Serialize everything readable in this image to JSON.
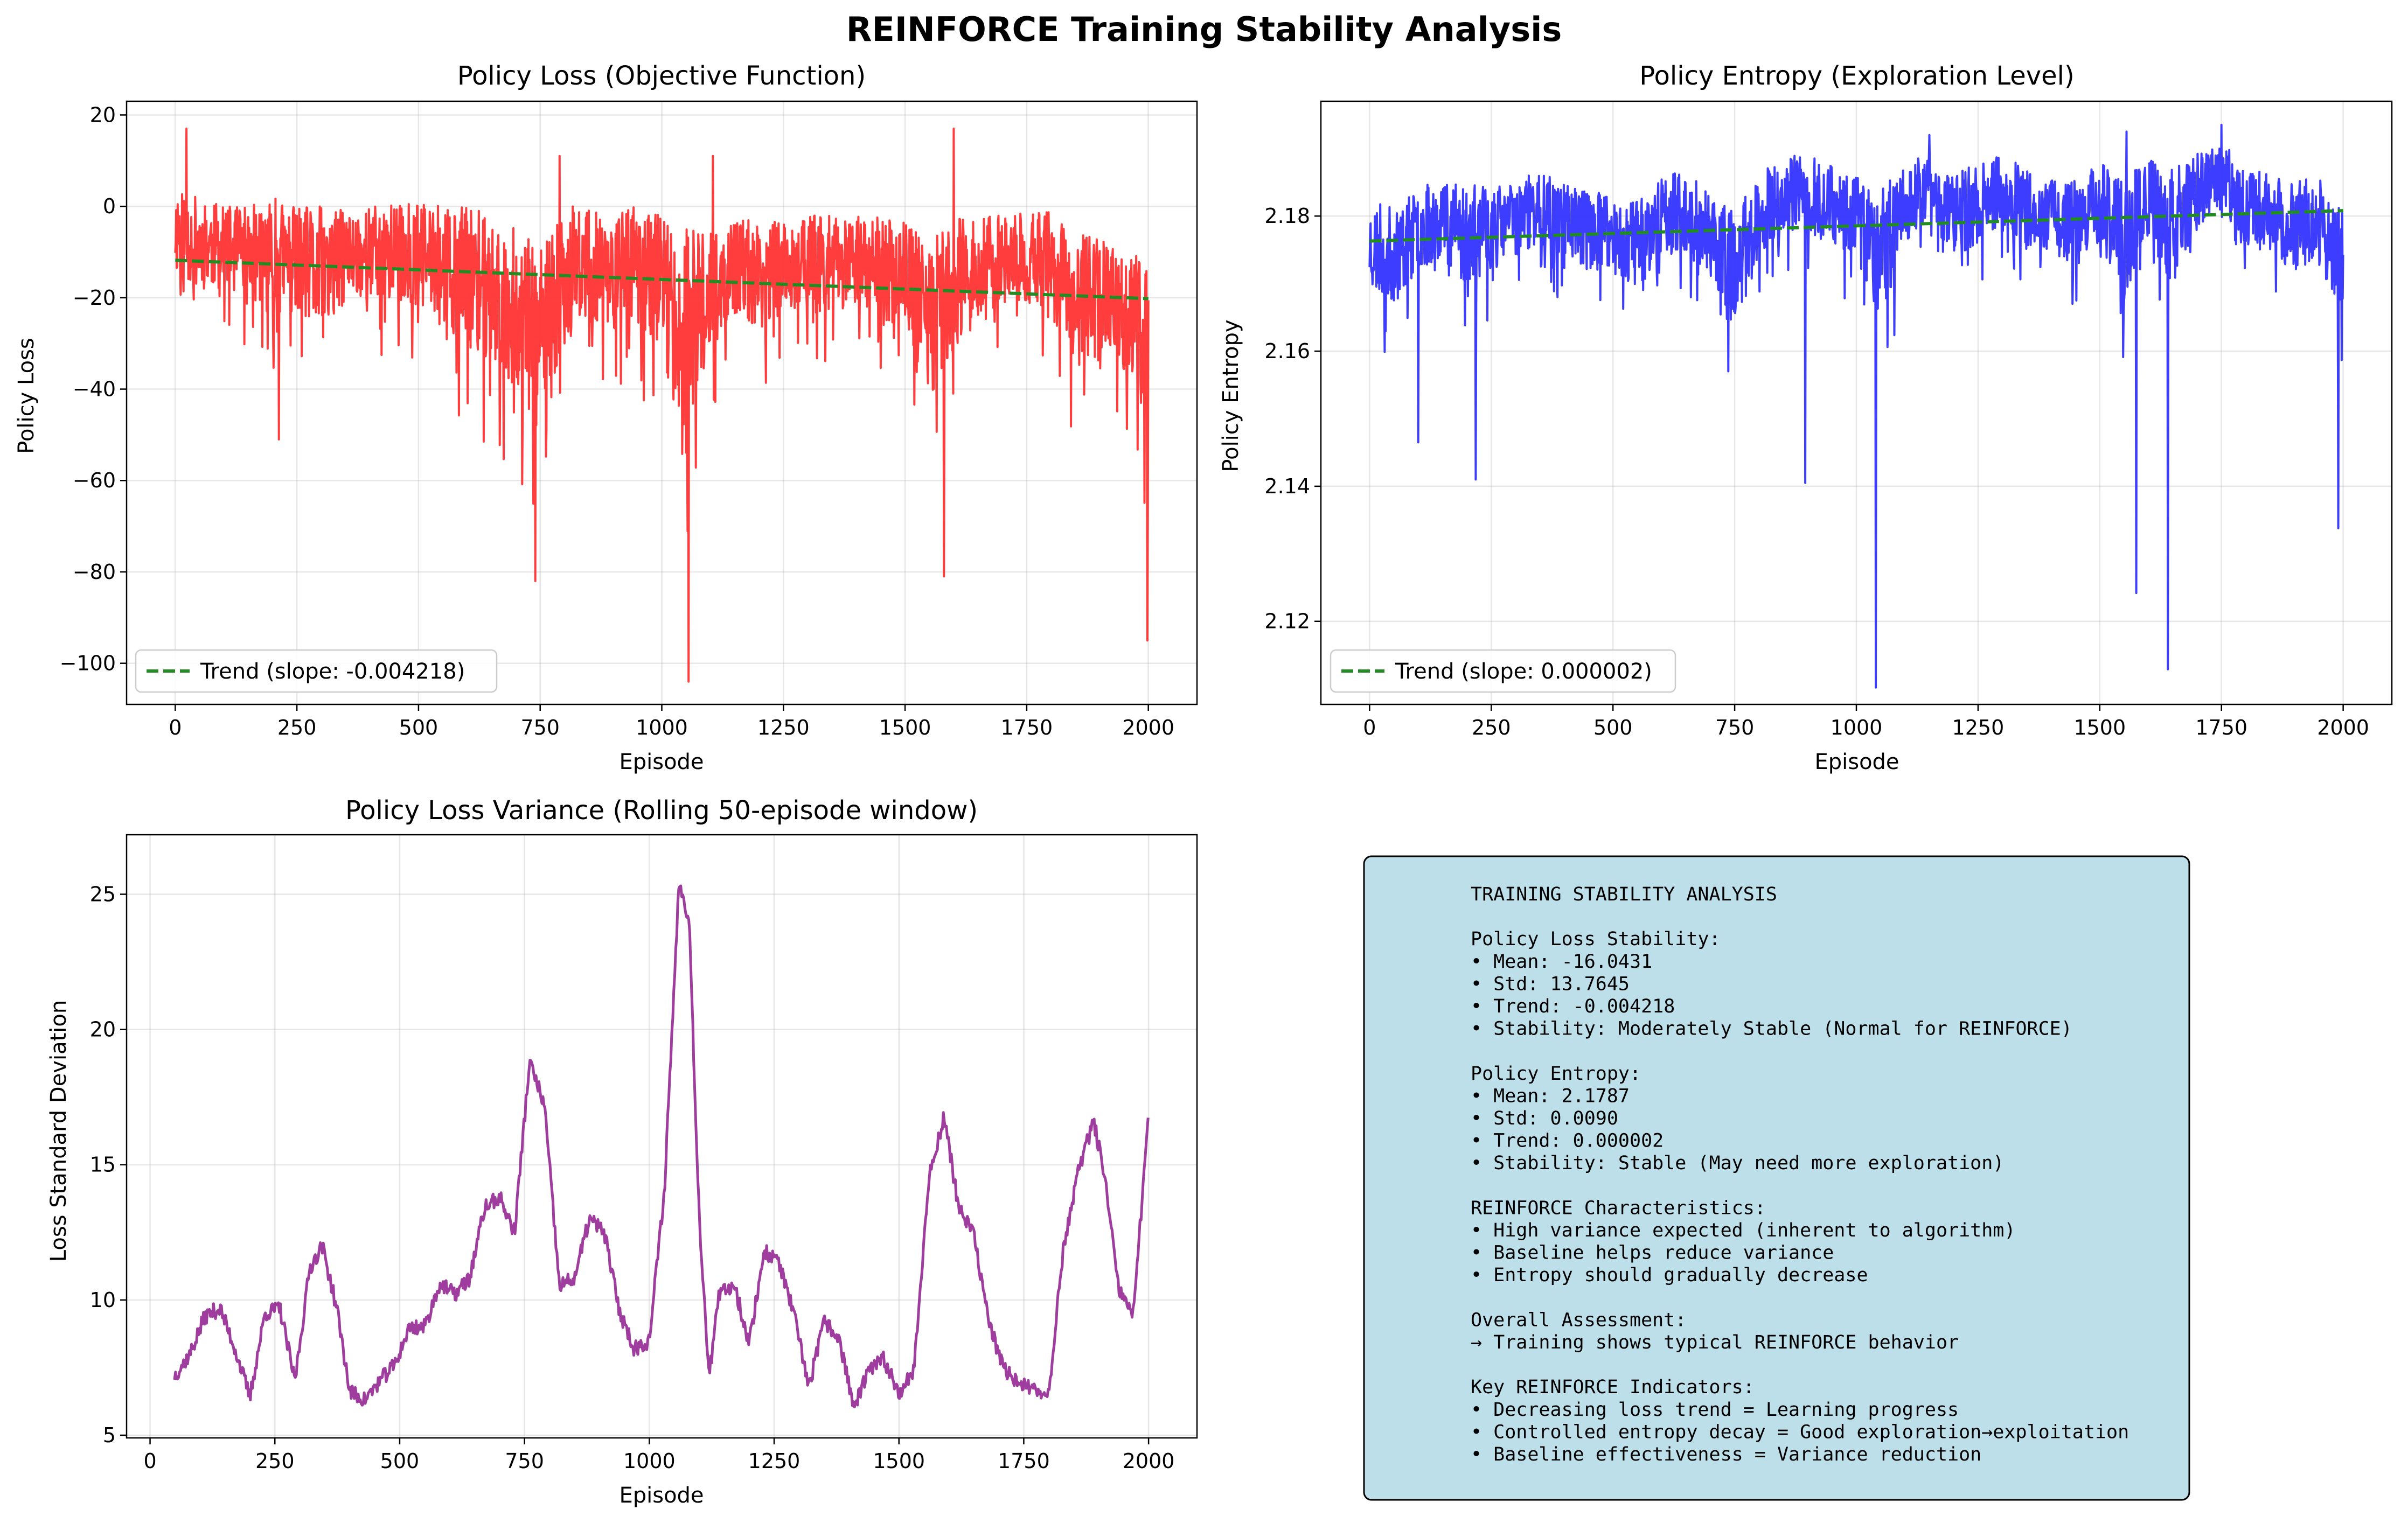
{
  "figure": {
    "title": "REINFORCE Training Stability Analysis"
  },
  "colors": {
    "loss": "#ff3333",
    "entropy": "#3333ff",
    "variance": "#993399",
    "trend": "#228b22",
    "stats_box_fill": "#bcdfea"
  },
  "chart_data": [
    {
      "type": "line",
      "title": "Policy Loss (Objective Function)",
      "xlabel": "Episode",
      "ylabel": "Policy Loss",
      "xlim": [
        -100,
        2100
      ],
      "ylim": [
        -109,
        23
      ],
      "xticks": [
        0,
        250,
        500,
        750,
        1000,
        1250,
        1500,
        1750,
        2000
      ],
      "yticks": [
        20,
        0,
        -20,
        -40,
        -60,
        -80,
        -100
      ],
      "grid": true,
      "legend_placement": "lower-left",
      "series": [
        {
          "kind": "noisy-line",
          "color": "#ff3333",
          "x": [
            0,
            50,
            100,
            150,
            200,
            250,
            300,
            350,
            400,
            450,
            500,
            550,
            600,
            650,
            700,
            750,
            800,
            850,
            900,
            950,
            1000,
            1050,
            1100,
            1150,
            1200,
            1250,
            1300,
            1350,
            1400,
            1450,
            1500,
            1550,
            1600,
            1650,
            1700,
            1750,
            1800,
            1850,
            1900,
            1950,
            2000
          ],
          "y": [
            -5,
            -8,
            -9,
            -10,
            -11,
            -12,
            -15,
            -11,
            -10,
            -10,
            -11,
            -13,
            -15,
            -18,
            -22,
            -30,
            -15,
            -13,
            -14,
            -13,
            -16,
            -30,
            -18,
            -14,
            -15,
            -13,
            -12,
            -13,
            -12,
            -14,
            -15,
            -25,
            -17,
            -14,
            -12,
            -11,
            -13,
            -20,
            -22,
            -23,
            -28
          ],
          "band": [
            10,
            10,
            9,
            10,
            13,
            12,
            15,
            10,
            10,
            11,
            12,
            13,
            15,
            16,
            18,
            20,
            15,
            13,
            14,
            13,
            16,
            25,
            12,
            11,
            12,
            11,
            10,
            11,
            10,
            12,
            12,
            17,
            14,
            12,
            10,
            10,
            12,
            14,
            15,
            13,
            18
          ]
        },
        {
          "name": "Trend (slope: -0.004218)",
          "kind": "trend",
          "color": "#228b22",
          "x": [
            0,
            2000
          ],
          "y": [
            -11.8,
            -20.2
          ]
        }
      ],
      "annotations_minima": [
        {
          "x": 213,
          "y": -51
        },
        {
          "x": 740,
          "y": -82
        },
        {
          "x": 1055,
          "y": -104
        },
        {
          "x": 1580,
          "y": -81
        },
        {
          "x": 1998,
          "y": -95
        }
      ],
      "annotations_maxima": [
        {
          "x": 23,
          "y": 17
        },
        {
          "x": 1600,
          "y": 17
        },
        {
          "x": 790,
          "y": 11
        },
        {
          "x": 1105,
          "y": 11
        }
      ]
    },
    {
      "type": "line",
      "title": "Policy Entropy (Exploration Level)",
      "xlabel": "Episode",
      "ylabel": "Policy Entropy",
      "xlim": [
        -100,
        2100
      ],
      "ylim": [
        2.1077,
        2.197
      ],
      "xticks": [
        0,
        250,
        500,
        750,
        1000,
        1250,
        1500,
        1750,
        2000
      ],
      "yticks": [
        2.18,
        2.16,
        2.14,
        2.12
      ],
      "grid": true,
      "legend_placement": "lower-left",
      "series": [
        {
          "kind": "noisy-line",
          "color": "#3333ff",
          "x": [
            0,
            50,
            100,
            150,
            200,
            250,
            300,
            350,
            400,
            450,
            500,
            550,
            600,
            650,
            700,
            750,
            800,
            850,
            900,
            950,
            1000,
            1050,
            1100,
            1150,
            1200,
            1250,
            1300,
            1350,
            1400,
            1450,
            1500,
            1550,
            1600,
            1650,
            1700,
            1750,
            1800,
            1850,
            1900,
            1950,
            2000
          ],
          "y": [
            2.176,
            2.174,
            2.178,
            2.18,
            2.177,
            2.178,
            2.18,
            2.181,
            2.18,
            2.178,
            2.177,
            2.176,
            2.18,
            2.181,
            2.177,
            2.172,
            2.18,
            2.183,
            2.183,
            2.182,
            2.18,
            2.174,
            2.182,
            2.184,
            2.18,
            2.182,
            2.184,
            2.181,
            2.18,
            2.18,
            2.182,
            2.176,
            2.183,
            2.178,
            2.184,
            2.186,
            2.182,
            2.18,
            2.178,
            2.18,
            2.172
          ],
          "band": [
            0.007,
            0.007,
            0.006,
            0.006,
            0.008,
            0.006,
            0.006,
            0.005,
            0.006,
            0.006,
            0.006,
            0.007,
            0.006,
            0.006,
            0.006,
            0.009,
            0.006,
            0.006,
            0.006,
            0.006,
            0.006,
            0.01,
            0.006,
            0.005,
            0.006,
            0.006,
            0.005,
            0.006,
            0.006,
            0.006,
            0.006,
            0.009,
            0.006,
            0.009,
            0.006,
            0.005,
            0.006,
            0.006,
            0.007,
            0.006,
            0.01
          ]
        },
        {
          "name": "Trend (slope: 0.000002)",
          "kind": "trend",
          "color": "#228b22",
          "x": [
            0,
            2000
          ],
          "y": [
            2.1763,
            2.1808
          ]
        }
      ],
      "annotations_minima": [
        {
          "x": 100,
          "y": 2.1465
        },
        {
          "x": 218,
          "y": 2.141
        },
        {
          "x": 895,
          "y": 2.1405
        },
        {
          "x": 1040,
          "y": 2.1102
        },
        {
          "x": 1575,
          "y": 2.1242
        },
        {
          "x": 1640,
          "y": 2.1129
        },
        {
          "x": 1990,
          "y": 2.1338
        }
      ],
      "annotations_maxima": [
        {
          "x": 1750,
          "y": 2.1935
        },
        {
          "x": 1150,
          "y": 2.192
        },
        {
          "x": 1555,
          "y": 2.1925
        }
      ]
    },
    {
      "type": "line",
      "title": "Policy Loss Variance (Rolling 50-episode window)",
      "xlabel": "Episode",
      "ylabel": "Loss Standard Deviation",
      "xlim": [
        -47,
        2097
      ],
      "ylim": [
        4.9,
        27.2
      ],
      "xticks": [
        0,
        250,
        500,
        750,
        1000,
        1250,
        1500,
        1750,
        2000
      ],
      "yticks": [
        5,
        10,
        15,
        20,
        25
      ],
      "grid": true,
      "series": [
        {
          "kind": "wiggly-line",
          "color": "#993399",
          "x": [
            49,
            80,
            110,
            140,
            170,
            200,
            230,
            260,
            290,
            320,
            345,
            375,
            400,
            430,
            460,
            490,
            520,
            550,
            580,
            610,
            640,
            670,
            700,
            730,
            760,
            790,
            820,
            850,
            880,
            910,
            940,
            970,
            1000,
            1030,
            1060,
            1080,
            1100,
            1120,
            1140,
            1170,
            1200,
            1230,
            1260,
            1290,
            1320,
            1350,
            1380,
            1410,
            1440,
            1470,
            1500,
            1530,
            1560,
            1590,
            1620,
            1650,
            1680,
            1710,
            1740,
            1770,
            1800,
            1830,
            1860,
            1890,
            1910,
            1940,
            1970,
            1999
          ],
          "y": [
            7.2,
            8.0,
            9.4,
            9.7,
            8.2,
            6.4,
            9.5,
            9.7,
            7.0,
            11.2,
            12.0,
            9.6,
            6.6,
            6.3,
            7.0,
            7.6,
            9.0,
            9.0,
            10.6,
            10.2,
            10.8,
            13.4,
            13.8,
            12.5,
            18.8,
            17.2,
            10.5,
            10.8,
            13.0,
            12.5,
            9.6,
            8.2,
            8.5,
            14.0,
            25.6,
            24.0,
            13.0,
            7.2,
            10.2,
            10.6,
            8.4,
            11.8,
            11.4,
            9.4,
            6.8,
            9.2,
            8.6,
            6.0,
            7.4,
            7.8,
            6.6,
            7.4,
            14.5,
            16.8,
            13.4,
            12.4,
            9.2,
            7.4,
            7.0,
            6.6,
            6.6,
            12.0,
            14.8,
            16.6,
            14.8,
            10.4,
            9.4,
            16.8
          ]
        }
      ]
    }
  ],
  "stats_box": {
    "lines": [
      "TRAINING STABILITY ANALYSIS",
      "",
      "Policy Loss Stability:",
      "• Mean: -16.0431",
      "• Std: 13.7645",
      "• Trend: -0.004218",
      "• Stability: Moderately Stable (Normal for REINFORCE)",
      "",
      "Policy Entropy:",
      "• Mean: 2.1787",
      "• Std: 0.0090",
      "• Trend: 0.000002",
      "• Stability: Stable (May need more exploration)",
      "",
      "REINFORCE Characteristics:",
      "• High variance expected (inherent to algorithm)",
      "• Baseline helps reduce variance",
      "• Entropy should gradually decrease",
      "",
      "Overall Assessment:",
      "→ Training shows typical REINFORCE behavior",
      "",
      "Key REINFORCE Indicators:",
      "• Decreasing loss trend = Learning progress",
      "• Controlled entropy decay = Good exploration→exploitation",
      "• Baseline effectiveness = Variance reduction"
    ]
  }
}
